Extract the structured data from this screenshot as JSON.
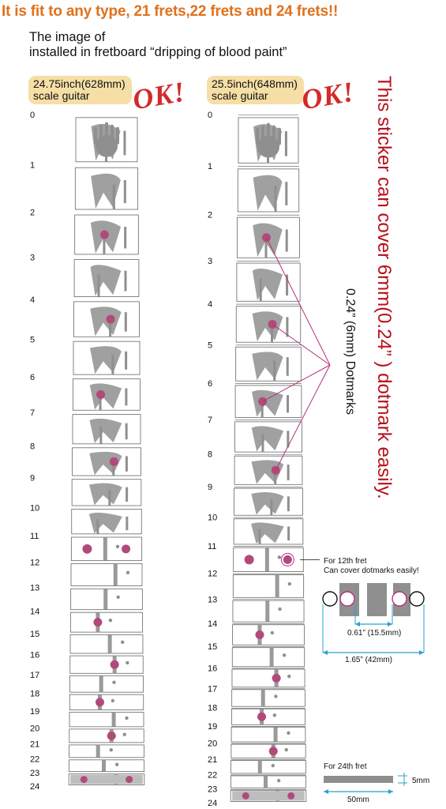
{
  "headline": "It is fit to any type, 21 frets,22 frets and 24 frets!!",
  "intro": {
    "line1": "The image of",
    "line2": "installed in fretboard “dripping of blood paint”"
  },
  "guitars": [
    {
      "line1": "24.75inch(628mm)",
      "line2": "scale guitar",
      "ok": "OK!"
    },
    {
      "line1": "25.5inch(648mm)",
      "line2": "scale guitar",
      "ok": "OK!"
    }
  ],
  "fret_numbers": [
    "0",
    "1",
    "2",
    "3",
    "4",
    "5",
    "6",
    "7",
    "8",
    "9",
    "10",
    "11",
    "12",
    "13",
    "14",
    "15",
    "16",
    "17",
    "18",
    "19",
    "20",
    "21",
    "22",
    "23",
    "24"
  ],
  "claim_vertical": "This sticker can cover 6mm(0.24” ) dotmark easily.",
  "dotmark_vertical": "0.24” (6mm) Dotmarks",
  "twelfth_note": {
    "line1": "For 12th fret",
    "line2": "Can cover dotmarks easily!",
    "inner_dim": "0.61” (15.5mm)",
    "outer_dim": "1.65” (42mm)"
  },
  "twentyfourth_note": {
    "title": "For 24th fret",
    "height_dim": "5mm",
    "width_dim": "50mm"
  },
  "colors": {
    "headline": "#e0711c",
    "badge": "#f5dfa6",
    "ok": "#d42a2a",
    "claim": "#b7101a",
    "dot": "#b14a7a",
    "leader": "#b8307a",
    "dimension": "#29a0d4",
    "blood": "#8f8f8f"
  }
}
